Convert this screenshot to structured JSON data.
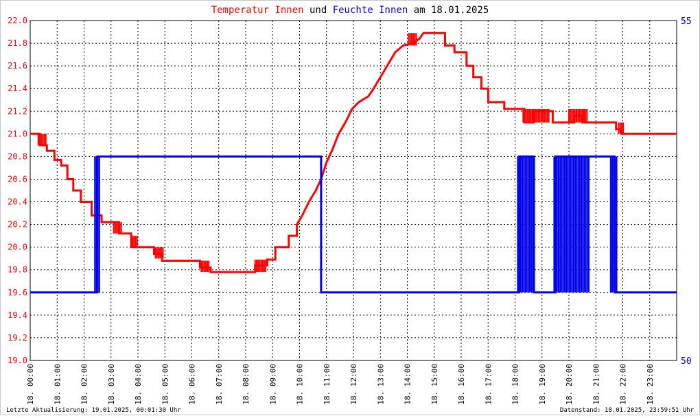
{
  "chart_data": {
    "type": "line",
    "title_parts": [
      {
        "text": "Temperatur Innen",
        "color": "#ff0000"
      },
      {
        "text": " und ",
        "color": "#000000"
      },
      {
        "text": "Feuchte Innen",
        "color": "#0000cc"
      },
      {
        "text": " am 18.01.2025",
        "color": "#000000"
      }
    ],
    "ylim": [
      19.0,
      22.0
    ],
    "y_ticks": [
      "19.0",
      "19.2",
      "19.4",
      "19.6",
      "19.8",
      "20.0",
      "20.2",
      "20.4",
      "20.6",
      "20.8",
      "21.0",
      "21.2",
      "21.4",
      "21.6",
      "21.8",
      "22.0"
    ],
    "y2lim": [
      50,
      55
    ],
    "y2_ticks": [
      "50",
      "55"
    ],
    "xlim": [
      0,
      24
    ],
    "x_ticks": [
      "18. 00:00",
      "18. 01:00",
      "18. 02:00",
      "18. 03:00",
      "18. 04:00",
      "18. 05:00",
      "18. 06:00",
      "18. 07:00",
      "18. 08:00",
      "18. 09:00",
      "18. 10:00",
      "18. 11:00",
      "18. 12:00",
      "18. 13:00",
      "18. 14:00",
      "18. 15:00",
      "18. 16:00",
      "18. 17:00",
      "18. 18:00",
      "18. 19:00",
      "18. 20:00",
      "18. 21:00",
      "18. 22:00",
      "18. 23:00"
    ],
    "grid": true,
    "series": [
      {
        "name": "Temperatur Innen",
        "color": "#ff0000",
        "axis": "left",
        "points": [
          [
            0,
            21.0
          ],
          [
            0.35,
            21.0
          ],
          [
            0.35,
            20.9
          ],
          [
            0.62,
            20.9
          ],
          [
            0.62,
            20.85
          ],
          [
            0.9,
            20.85
          ],
          [
            0.9,
            20.77
          ],
          [
            1.15,
            20.77
          ],
          [
            1.15,
            20.72
          ],
          [
            1.38,
            20.72
          ],
          [
            1.38,
            20.6
          ],
          [
            1.6,
            20.6
          ],
          [
            1.6,
            20.5
          ],
          [
            1.88,
            20.5
          ],
          [
            1.88,
            20.4
          ],
          [
            2.28,
            20.4
          ],
          [
            2.28,
            20.28
          ],
          [
            2.65,
            20.28
          ],
          [
            2.65,
            20.22
          ],
          [
            3.3,
            20.22
          ],
          [
            3.3,
            20.12
          ],
          [
            3.75,
            20.12
          ],
          [
            3.75,
            20.0
          ],
          [
            4.6,
            20.0
          ],
          [
            4.6,
            19.94
          ],
          [
            4.9,
            19.94
          ],
          [
            4.9,
            19.88
          ],
          [
            6.3,
            19.88
          ],
          [
            6.3,
            19.82
          ],
          [
            6.7,
            19.82
          ],
          [
            6.7,
            19.78
          ],
          [
            8.35,
            19.78
          ],
          [
            8.35,
            19.84
          ],
          [
            8.8,
            19.84
          ],
          [
            8.8,
            19.89
          ],
          [
            9.1,
            19.89
          ],
          [
            9.1,
            20.0
          ],
          [
            9.6,
            20.0
          ],
          [
            9.6,
            20.1
          ],
          [
            9.9,
            20.1
          ],
          [
            9.9,
            20.2
          ],
          [
            10.1,
            20.28
          ],
          [
            10.35,
            20.4
          ],
          [
            10.6,
            20.5
          ],
          [
            10.8,
            20.6
          ],
          [
            11.0,
            20.75
          ],
          [
            11.2,
            20.85
          ],
          [
            11.45,
            21.0
          ],
          [
            11.7,
            21.1
          ],
          [
            11.95,
            21.22
          ],
          [
            12.2,
            21.28
          ],
          [
            12.55,
            21.33
          ],
          [
            12.75,
            21.4
          ],
          [
            13.0,
            21.5
          ],
          [
            13.25,
            21.6
          ],
          [
            13.55,
            21.72
          ],
          [
            13.85,
            21.78
          ],
          [
            14.2,
            21.8
          ],
          [
            14.45,
            21.84
          ],
          [
            14.6,
            21.89
          ],
          [
            15.4,
            21.89
          ],
          [
            15.4,
            21.78
          ],
          [
            15.75,
            21.78
          ],
          [
            15.75,
            21.72
          ],
          [
            16.2,
            21.72
          ],
          [
            16.2,
            21.6
          ],
          [
            16.45,
            21.6
          ],
          [
            16.45,
            21.5
          ],
          [
            16.75,
            21.5
          ],
          [
            16.75,
            21.4
          ],
          [
            17.0,
            21.4
          ],
          [
            17.0,
            21.28
          ],
          [
            17.6,
            21.28
          ],
          [
            17.6,
            21.22
          ],
          [
            18.35,
            21.22
          ],
          [
            18.35,
            21.1
          ],
          [
            18.7,
            21.1
          ],
          [
            18.7,
            21.2
          ],
          [
            19.4,
            21.2
          ],
          [
            19.4,
            21.1
          ],
          [
            20.2,
            21.1
          ],
          [
            20.2,
            21.16
          ],
          [
            20.5,
            21.16
          ],
          [
            20.5,
            21.1
          ],
          [
            21.75,
            21.1
          ],
          [
            21.75,
            21.04
          ],
          [
            21.95,
            21.04
          ],
          [
            21.95,
            21.0
          ],
          [
            24.0,
            21.0
          ]
        ]
      },
      {
        "name": "Feuchte Innen",
        "color": "#0000ee",
        "axis": "right",
        "points": [
          [
            0,
            51.0
          ],
          [
            2.5,
            51.0
          ],
          [
            2.5,
            53.0
          ],
          [
            10.8,
            53.0
          ],
          [
            10.8,
            51.0
          ],
          [
            18.15,
            51.0
          ],
          [
            18.15,
            53.0
          ],
          [
            18.7,
            53.0
          ],
          [
            18.7,
            51.0
          ],
          [
            19.5,
            51.0
          ],
          [
            19.5,
            53.0
          ],
          [
            21.7,
            53.0
          ],
          [
            21.7,
            51.0
          ],
          [
            24.0,
            51.0
          ]
        ]
      }
    ],
    "noise_bands": [
      {
        "series": "Temperatur Innen",
        "from": 0.3,
        "to": 0.6,
        "values": [
          20.9,
          21.0
        ]
      },
      {
        "series": "Temperatur Innen",
        "from": 3.1,
        "to": 3.4,
        "values": [
          20.12,
          20.22
        ]
      },
      {
        "series": "Temperatur Innen",
        "from": 3.8,
        "to": 4.0,
        "values": [
          20.0,
          20.1
        ]
      },
      {
        "series": "Temperatur Innen",
        "from": 4.65,
        "to": 4.95,
        "values": [
          19.9,
          20.0
        ]
      },
      {
        "series": "Temperatur Innen",
        "from": 6.35,
        "to": 6.65,
        "values": [
          19.78,
          19.88
        ]
      },
      {
        "series": "Temperatur Innen",
        "from": 8.35,
        "to": 8.75,
        "values": [
          19.78,
          19.89
        ]
      },
      {
        "series": "Temperatur Innen",
        "from": 14.05,
        "to": 14.35,
        "values": [
          21.78,
          21.89
        ]
      },
      {
        "series": "Temperatur Innen",
        "from": 18.3,
        "to": 19.3,
        "values": [
          21.1,
          21.22
        ]
      },
      {
        "series": "Temperatur Innen",
        "from": 20.0,
        "to": 20.7,
        "values": [
          21.1,
          21.22
        ]
      },
      {
        "series": "Temperatur Innen",
        "from": 21.85,
        "to": 22.05,
        "values": [
          21.0,
          21.1
        ]
      },
      {
        "series": "Feuchte Innen",
        "from": 2.4,
        "to": 2.6,
        "values": [
          51.0,
          53.0
        ]
      },
      {
        "series": "Feuchte Innen",
        "from": 18.1,
        "to": 18.75,
        "values": [
          51.0,
          53.0
        ]
      },
      {
        "series": "Feuchte Innen",
        "from": 19.45,
        "to": 20.75,
        "values": [
          51.0,
          53.0
        ]
      },
      {
        "series": "Feuchte Innen",
        "from": 21.55,
        "to": 21.8,
        "values": [
          51.0,
          53.0
        ]
      }
    ]
  },
  "footer": {
    "left": "Letzte Aktualisierung: 19.01.2025, 00:01:30 Uhr",
    "right": "Datenstand: 18.01.2025, 23:59:51 Uhr"
  }
}
